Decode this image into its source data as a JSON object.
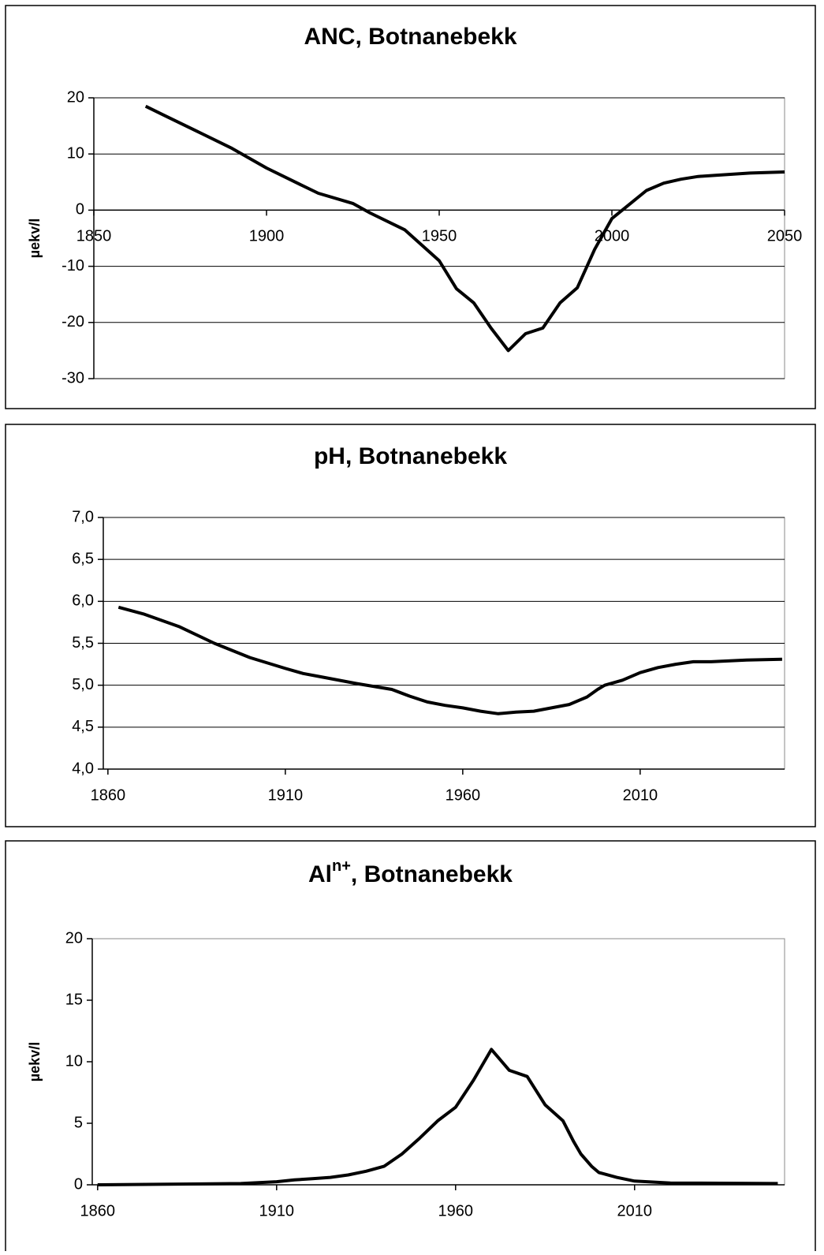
{
  "chart_data": [
    {
      "type": "line",
      "title": [
        "ANC, Botnanebekk"
      ],
      "y_label": "µekv/l",
      "color": "#000000",
      "grid": true,
      "xlim": [
        1850,
        2050
      ],
      "xticks": [
        1850,
        1900,
        1950,
        2000,
        2050
      ],
      "ylim": [
        -30,
        20
      ],
      "yticks": [
        -30,
        -20,
        -10,
        0,
        10,
        20
      ],
      "x": [
        1865,
        1870,
        1880,
        1890,
        1900,
        1910,
        1915,
        1925,
        1930,
        1940,
        1950,
        1955,
        1960,
        1965,
        1970,
        1975,
        1980,
        1985,
        1990,
        1995,
        2000,
        2005,
        2010,
        2015,
        2020,
        2025,
        2030,
        2040,
        2050
      ],
      "values": [
        18.5,
        17,
        14,
        11,
        7.5,
        4.5,
        3,
        1.2,
        -0.5,
        -3.5,
        -9,
        -14,
        -16.5,
        -21,
        -25,
        -22,
        -21,
        -16.5,
        -13.8,
        -7,
        -1.5,
        1,
        3.5,
        4.8,
        5.5,
        6,
        6.2,
        6.6,
        6.8
      ]
    },
    {
      "type": "line",
      "title": [
        "pH, Botnanebekk"
      ],
      "color": "#000000",
      "grid": true,
      "xlim": [
        1858.7,
        2050.7
      ],
      "xticks": [
        1860,
        1910,
        1960,
        2010
      ],
      "ylim": [
        4,
        7
      ],
      "yticks": [
        {
          "value": 4,
          "label": "4,0"
        },
        {
          "value": 4.5,
          "label": "4,5"
        },
        {
          "value": 5,
          "label": "5,0"
        },
        {
          "value": 5.5,
          "label": "5,5"
        },
        {
          "value": 6,
          "label": "6,0"
        },
        {
          "value": 6.5,
          "label": "6,5"
        },
        {
          "value": 7,
          "label": "7,0"
        }
      ],
      "x": [
        1863,
        1870,
        1880,
        1890,
        1900,
        1910,
        1915,
        1920,
        1930,
        1940,
        1945,
        1950,
        1955,
        1960,
        1965,
        1970,
        1975,
        1980,
        1985,
        1990,
        1995,
        1998,
        2000,
        2005,
        2010,
        2015,
        2020,
        2025,
        2030,
        2040,
        2050
      ],
      "values": [
        5.93,
        5.85,
        5.7,
        5.5,
        5.33,
        5.2,
        5.14,
        5.1,
        5.02,
        4.95,
        4.87,
        4.8,
        4.76,
        4.73,
        4.69,
        4.66,
        4.68,
        4.69,
        4.73,
        4.77,
        4.86,
        4.95,
        5.0,
        5.06,
        5.15,
        5.21,
        5.25,
        5.28,
        5.28,
        5.3,
        5.31
      ]
    },
    {
      "type": "line",
      "title": [
        "Al",
        "n+",
        ", Botnanebekk"
      ],
      "y_label": "µekv/l",
      "color": "#000000",
      "grid": false,
      "xlim": [
        1858.5,
        2051.9
      ],
      "xticks": [
        1860,
        1910,
        1960,
        2010
      ],
      "ylim": [
        0,
        20
      ],
      "yticks": [
        0,
        5,
        10,
        15,
        20
      ],
      "x": [
        1860,
        1900,
        1910,
        1915,
        1920,
        1925,
        1930,
        1935,
        1940,
        1945,
        1950,
        1955,
        1960,
        1965,
        1970,
        1975,
        1980,
        1985,
        1990,
        1993,
        1995,
        1998,
        2000,
        2005,
        2010,
        2020,
        2050
      ],
      "values": [
        0,
        0.1,
        0.25,
        0.4,
        0.5,
        0.6,
        0.8,
        1.1,
        1.5,
        2.5,
        3.8,
        5.2,
        6.3,
        8.5,
        11,
        9.3,
        8.8,
        6.5,
        5.2,
        3.5,
        2.5,
        1.5,
        1,
        0.6,
        0.3,
        0.15,
        0.1
      ]
    }
  ]
}
